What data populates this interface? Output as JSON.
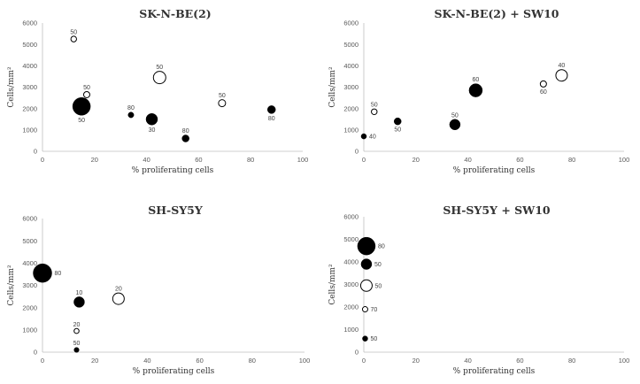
{
  "chart_data": [
    {
      "type": "scatter",
      "title": "SK-N-BE(2)",
      "xlabel": "% proliferating cells",
      "ylabel": "Cells/mm²",
      "xlim": [
        0,
        100
      ],
      "ylim": [
        0,
        6000
      ],
      "xticks": [
        "0",
        "20",
        "40",
        "60",
        "80",
        "100"
      ],
      "yticks": [
        "0",
        "1000",
        "2000",
        "3000",
        "4000",
        "5000",
        "6000"
      ],
      "series": [
        {
          "name": "filled",
          "points": [
            {
              "x": 15,
              "y": 2100,
              "r": 10,
              "label": "50",
              "label_pos": "below"
            },
            {
              "x": 34,
              "y": 1700,
              "r": 3.2,
              "label": "80",
              "label_pos": "above"
            },
            {
              "x": 42,
              "y": 1500,
              "r": 6.5,
              "label": "30",
              "label_pos": "below"
            },
            {
              "x": 55,
              "y": 600,
              "r": 4,
              "label": "80",
              "label_pos": "above"
            },
            {
              "x": 88,
              "y": 1950,
              "r": 4.5,
              "label": "80",
              "label_pos": "below"
            }
          ]
        },
        {
          "name": "open",
          "points": [
            {
              "x": 12,
              "y": 5250,
              "r": 3.2,
              "label": "50",
              "label_pos": "above"
            },
            {
              "x": 17,
              "y": 2650,
              "r": 3.5,
              "label": "50",
              "label_pos": "above"
            },
            {
              "x": 45,
              "y": 3450,
              "r": 7,
              "label": "50",
              "label_pos": "above"
            },
            {
              "x": 69,
              "y": 2250,
              "r": 4,
              "label": "50",
              "label_pos": "above"
            }
          ]
        }
      ]
    },
    {
      "type": "scatter",
      "title": "SK-N-BE(2) + SW10",
      "xlabel": "% proliferating cells",
      "ylabel": "Cells/mm²",
      "xlim": [
        0,
        100
      ],
      "ylim": [
        0,
        6000
      ],
      "xticks": [
        "0",
        "20",
        "40",
        "60",
        "80",
        "100"
      ],
      "yticks": [
        "0",
        "1000",
        "2000",
        "3000",
        "4000",
        "5000",
        "6000"
      ],
      "series": [
        {
          "name": "filled",
          "points": [
            {
              "x": 0,
              "y": 700,
              "r": 3,
              "label": "40",
              "label_pos": "right"
            },
            {
              "x": 13,
              "y": 1400,
              "r": 4,
              "label": "50",
              "label_pos": "below"
            },
            {
              "x": 35,
              "y": 1250,
              "r": 6,
              "label": "50",
              "label_pos": "above"
            },
            {
              "x": 43,
              "y": 2850,
              "r": 7.5,
              "label": "60",
              "label_pos": "above"
            }
          ]
        },
        {
          "name": "open",
          "points": [
            {
              "x": 4,
              "y": 1850,
              "r": 3.2,
              "label": "50",
              "label_pos": "above"
            },
            {
              "x": 69,
              "y": 3150,
              "r": 3.5,
              "label": "60",
              "label_pos": "below"
            },
            {
              "x": 76,
              "y": 3550,
              "r": 6.5,
              "label": "40",
              "label_pos": "above"
            }
          ]
        }
      ]
    },
    {
      "type": "scatter",
      "title": "SH-SY5Y",
      "xlabel": "% proliferating cells",
      "ylabel": "Cells/mm²",
      "xlim": [
        0,
        100
      ],
      "ylim": [
        0,
        6000
      ],
      "xticks": [
        "0",
        "20",
        "40",
        "60",
        "80",
        "100"
      ],
      "yticks": [
        "0",
        "1000",
        "2000",
        "3000",
        "4000",
        "5000",
        "6000"
      ],
      "series": [
        {
          "name": "filled",
          "points": [
            {
              "x": 0,
              "y": 3550,
              "r": 10.5,
              "label": "80",
              "label_pos": "right"
            },
            {
              "x": 14,
              "y": 2250,
              "r": 6,
              "label": "10",
              "label_pos": "above"
            },
            {
              "x": 13,
              "y": 100,
              "r": 2.8,
              "label": "50",
              "label_pos": "above"
            }
          ]
        },
        {
          "name": "open",
          "points": [
            {
              "x": 13,
              "y": 950,
              "r": 2.8,
              "label": "20",
              "label_pos": "above"
            },
            {
              "x": 29,
              "y": 2400,
              "r": 6.5,
              "label": "20",
              "label_pos": "above"
            }
          ]
        }
      ]
    },
    {
      "type": "scatter",
      "title": "SH-SY5Y + SW10",
      "xlabel": "% proliferating cells",
      "ylabel": "Cells/mm²",
      "xlim": [
        0,
        100
      ],
      "ylim": [
        0,
        6000
      ],
      "xticks": [
        "0",
        "20",
        "40",
        "60",
        "80",
        "100"
      ],
      "yticks": [
        "0",
        "1000",
        "2000",
        "3000",
        "4000",
        "5000",
        "6000"
      ],
      "series": [
        {
          "name": "filled",
          "points": [
            {
              "x": 1,
              "y": 4700,
              "r": 10,
              "label": "80",
              "label_pos": "right"
            },
            {
              "x": 1,
              "y": 3900,
              "r": 6,
              "label": "50",
              "label_pos": "right"
            },
            {
              "x": 0.5,
              "y": 600,
              "r": 3,
              "label": "50",
              "label_pos": "right"
            }
          ]
        },
        {
          "name": "open",
          "points": [
            {
              "x": 1,
              "y": 2950,
              "r": 6.5,
              "label": "50",
              "label_pos": "right"
            },
            {
              "x": 0.5,
              "y": 1900,
              "r": 3,
              "label": "70",
              "label_pos": "right"
            }
          ]
        }
      ]
    }
  ]
}
